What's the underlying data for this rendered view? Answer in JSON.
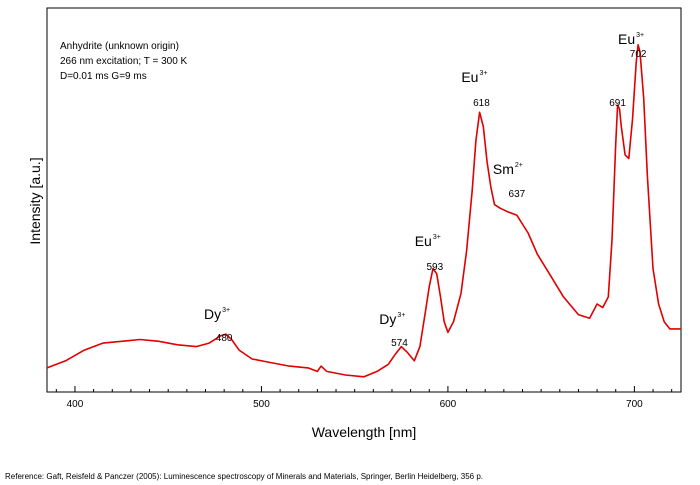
{
  "chart_data": {
    "type": "line",
    "xlabel": "Wavelength [nm]",
    "ylabel": "Intensity [a.u.]",
    "xlim": [
      385,
      725
    ],
    "ylim": [
      0,
      1.0
    ],
    "x_ticks": [
      400,
      500,
      600,
      700
    ],
    "y_ticks_shown": false,
    "grid": false,
    "line_color": "#e00000",
    "info": [
      "Anhydrite (unknown origin)",
      "266 nm excitation; T = 300 K",
      "D=0.01 ms G=9 ms"
    ],
    "annotations": [
      {
        "ion": "Dy",
        "charge": "3+",
        "value": "480",
        "x": 480
      },
      {
        "ion": "Dy",
        "charge": "3+",
        "value": "574",
        "x": 574
      },
      {
        "ion": "Eu",
        "charge": "3+",
        "value": "593",
        "x": 593
      },
      {
        "ion": "Eu",
        "charge": "3+",
        "value": "618",
        "x": 618
      },
      {
        "ion": "Sm",
        "charge": "2+",
        "value": "637",
        "x": 637
      },
      {
        "ion": "",
        "charge": "",
        "value": "691",
        "x": 691
      },
      {
        "ion": "Eu",
        "charge": "3+",
        "value": "702",
        "x": 702
      }
    ],
    "series": [
      {
        "x": [
          385,
          395,
          405,
          415,
          425,
          435,
          445,
          455,
          465,
          472,
          478,
          481,
          484,
          488,
          495,
          505,
          515,
          525,
          530,
          532,
          535,
          545,
          555,
          562,
          568,
          572,
          575,
          578,
          582,
          585,
          588,
          590,
          592,
          594,
          596,
          598,
          600,
          603,
          607,
          610,
          613,
          615,
          617,
          619,
          621,
          623,
          625,
          628,
          632,
          637,
          643,
          648,
          655,
          662,
          670,
          676,
          680,
          683,
          686,
          688,
          690,
          691,
          692,
          693,
          695,
          697,
          699,
          701,
          702,
          703,
          705,
          707,
          710,
          713,
          716,
          719,
          722,
          725
        ],
        "values": [
          0.02,
          0.04,
          0.07,
          0.09,
          0.095,
          0.1,
          0.095,
          0.085,
          0.08,
          0.09,
          0.11,
          0.115,
          0.1,
          0.07,
          0.045,
          0.035,
          0.025,
          0.02,
          0.01,
          0.025,
          0.01,
          0.0,
          -0.005,
          0.01,
          0.03,
          0.06,
          0.08,
          0.065,
          0.04,
          0.08,
          0.18,
          0.25,
          0.3,
          0.285,
          0.22,
          0.15,
          0.12,
          0.15,
          0.23,
          0.35,
          0.52,
          0.66,
          0.74,
          0.7,
          0.6,
          0.53,
          0.48,
          0.47,
          0.46,
          0.45,
          0.4,
          0.34,
          0.28,
          0.22,
          0.17,
          0.16,
          0.2,
          0.19,
          0.22,
          0.38,
          0.65,
          0.76,
          0.75,
          0.7,
          0.62,
          0.61,
          0.72,
          0.88,
          0.93,
          0.91,
          0.78,
          0.56,
          0.3,
          0.2,
          0.15,
          0.13,
          0.13,
          0.13
        ]
      }
    ]
  },
  "reference": "Reference: Gaft, Reisfeld & Panczer (2005): Luminescence spectroscopy of Minerals and Materials, Springer, Berlin Heidelberg, 356 p."
}
